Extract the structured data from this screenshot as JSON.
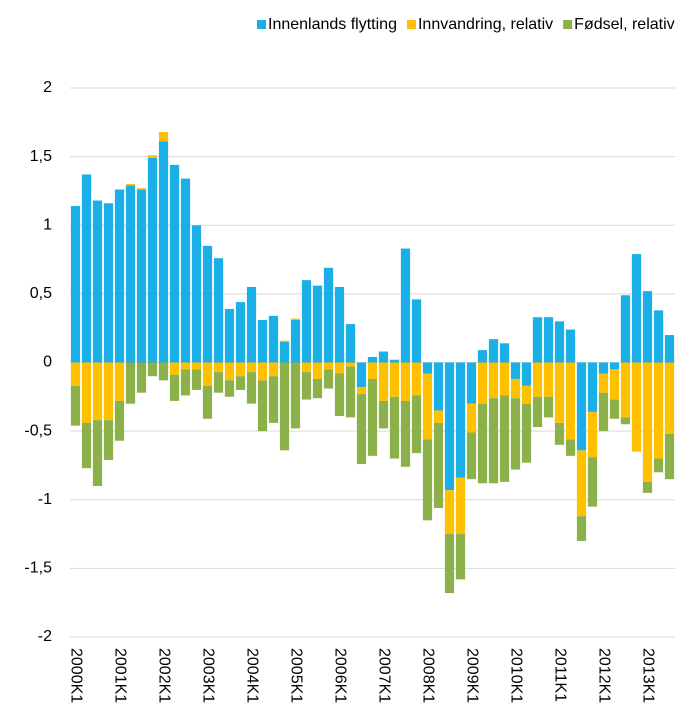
{
  "chart_data": {
    "type": "bar",
    "stacked": true,
    "categories": [
      "2000K1",
      null,
      null,
      null,
      "2001K1",
      null,
      null,
      null,
      "2002K1",
      null,
      null,
      null,
      "2003K1",
      null,
      null,
      null,
      "2004K1",
      null,
      null,
      null,
      "2005K1",
      null,
      null,
      null,
      "2006K1",
      null,
      null,
      null,
      "2007K1",
      null,
      null,
      null,
      "2008K1",
      null,
      null,
      null,
      "2009K1",
      null,
      null,
      null,
      "2010K1",
      null,
      null,
      null,
      "2011K1",
      null,
      null,
      null,
      "2012K1",
      null,
      null,
      null,
      "2013K1",
      null,
      null
    ],
    "series": [
      {
        "name": "Innenlands flytting",
        "color": "#1aafe6",
        "values": [
          1.14,
          1.37,
          1.18,
          1.16,
          1.26,
          1.29,
          1.26,
          1.49,
          1.61,
          1.44,
          1.34,
          1.0,
          0.85,
          0.76,
          0.39,
          0.44,
          0.55,
          0.31,
          0.34,
          0.15,
          0.31,
          0.6,
          0.56,
          0.69,
          0.55,
          0.28,
          -0.18,
          0.04,
          0.08,
          0.02,
          0.83,
          0.46,
          -0.08,
          -0.35,
          -0.93,
          -0.84,
          -0.3,
          0.09,
          0.17,
          0.14,
          -0.12,
          -0.17,
          0.33,
          0.33,
          0.3,
          0.24,
          -0.64,
          -0.36,
          -0.08,
          -0.05,
          0.49,
          0.79,
          0.52,
          0.38,
          0.2
        ]
      },
      {
        "name": "Innvandring, relativ",
        "color": "#ffc000",
        "values": [
          -0.17,
          -0.44,
          -0.42,
          -0.42,
          -0.28,
          0.01,
          0.01,
          0.02,
          0.07,
          -0.09,
          -0.05,
          -0.05,
          -0.17,
          -0.07,
          -0.13,
          -0.1,
          -0.07,
          -0.13,
          -0.1,
          0.01,
          0.01,
          -0.07,
          -0.12,
          -0.05,
          -0.08,
          -0.03,
          -0.05,
          -0.12,
          -0.28,
          -0.25,
          -0.28,
          -0.24,
          -0.48,
          -0.09,
          -0.32,
          -0.41,
          -0.21,
          -0.3,
          -0.26,
          -0.24,
          -0.14,
          -0.13,
          -0.25,
          -0.25,
          -0.44,
          -0.56,
          -0.48,
          -0.33,
          -0.14,
          -0.22,
          -0.4,
          -0.65,
          -0.87,
          -0.7,
          -0.52
        ]
      },
      {
        "name": "Fødsel, relativ",
        "color": "#8db14a",
        "values": [
          -0.29,
          -0.33,
          -0.48,
          -0.29,
          -0.29,
          -0.3,
          -0.22,
          -0.1,
          -0.13,
          -0.19,
          -0.19,
          -0.15,
          -0.24,
          -0.15,
          -0.12,
          -0.1,
          -0.23,
          -0.37,
          -0.34,
          -0.64,
          -0.48,
          -0.2,
          -0.14,
          -0.14,
          -0.31,
          -0.37,
          -0.51,
          -0.56,
          -0.2,
          -0.45,
          -0.48,
          -0.42,
          -0.59,
          -0.62,
          -0.43,
          -0.33,
          -0.34,
          -0.58,
          -0.62,
          -0.63,
          -0.52,
          -0.43,
          -0.22,
          -0.15,
          -0.16,
          -0.12,
          -0.18,
          -0.36,
          -0.28,
          -0.14,
          -0.05,
          0,
          -0.08,
          -0.1,
          -0.33
        ]
      }
    ],
    "ylim": [
      -2,
      2
    ],
    "yticks": [
      -2,
      {
        "value": -1.5,
        "label": "-1,5"
      },
      -1,
      {
        "value": -0.5,
        "label": "-0,5"
      },
      0,
      {
        "value": 0.5,
        "label": "0,5"
      },
      1,
      {
        "value": 1.5,
        "label": "1,5"
      },
      2
    ],
    "grid": true,
    "legend": "top"
  }
}
